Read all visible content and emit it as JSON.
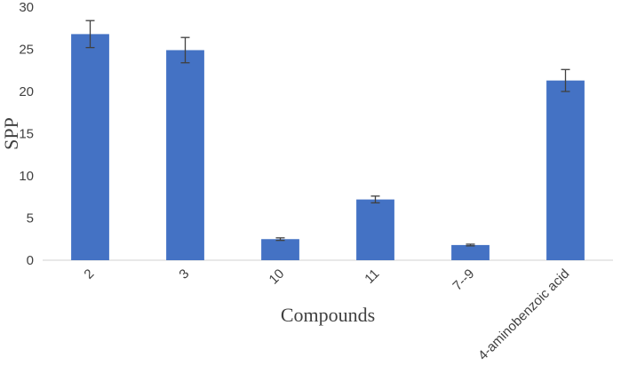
{
  "chart_data": {
    "type": "bar",
    "categories": [
      "2",
      "3",
      "10",
      "11",
      "7--9",
      "4-aminobenzoic acid"
    ],
    "values": [
      26.8,
      24.9,
      2.5,
      7.2,
      1.8,
      21.3
    ],
    "errors": [
      1.6,
      1.5,
      0.15,
      0.4,
      0.1,
      1.3
    ],
    "ylabel": "SPP",
    "xlabel": "Compounds",
    "ylim": [
      0,
      30
    ],
    "yticks": [
      0,
      5,
      10,
      15,
      20,
      25,
      30
    ],
    "grid": false,
    "bar_color": "#4472C4",
    "error_color": "#404040"
  }
}
